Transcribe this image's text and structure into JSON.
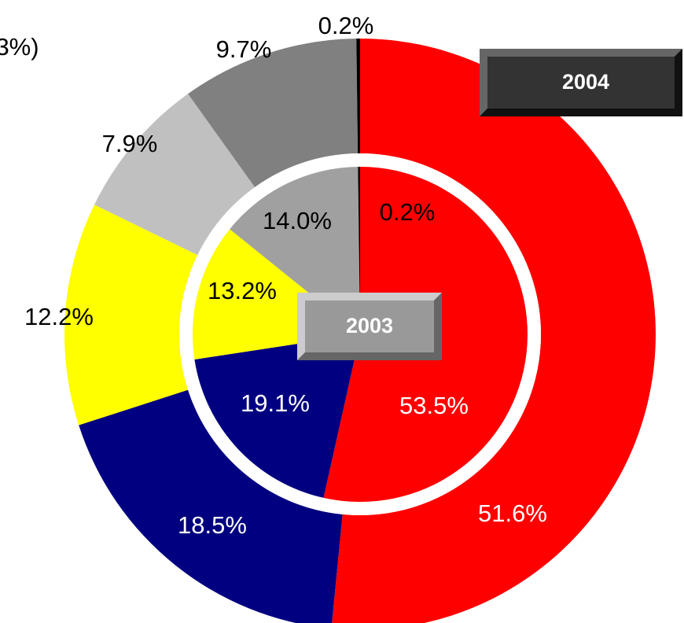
{
  "chart_data": {
    "type": "nested-donut",
    "annotation": "3%)",
    "series": [
      {
        "name": "2004",
        "values": [
          51.6,
          18.5,
          12.2,
          7.9,
          9.7,
          0.2
        ],
        "value_labels": [
          "51.6%",
          "18.5%",
          "12.2%",
          "7.9%",
          "9.7%",
          "0.2%"
        ],
        "colors": [
          "#ff0000",
          "#000080",
          "#ffff00",
          "#c0c0c0",
          "#808080",
          "#000000"
        ]
      },
      {
        "name": "2003",
        "values": [
          53.5,
          19.1,
          13.2,
          14.0,
          0.2
        ],
        "value_labels": [
          "53.5%",
          "19.1%",
          "13.2%",
          "14.0%",
          "0.2%"
        ],
        "colors": [
          "#ff0000",
          "#000080",
          "#ffff00",
          "#a0a0a0",
          "#000000"
        ]
      }
    ]
  }
}
